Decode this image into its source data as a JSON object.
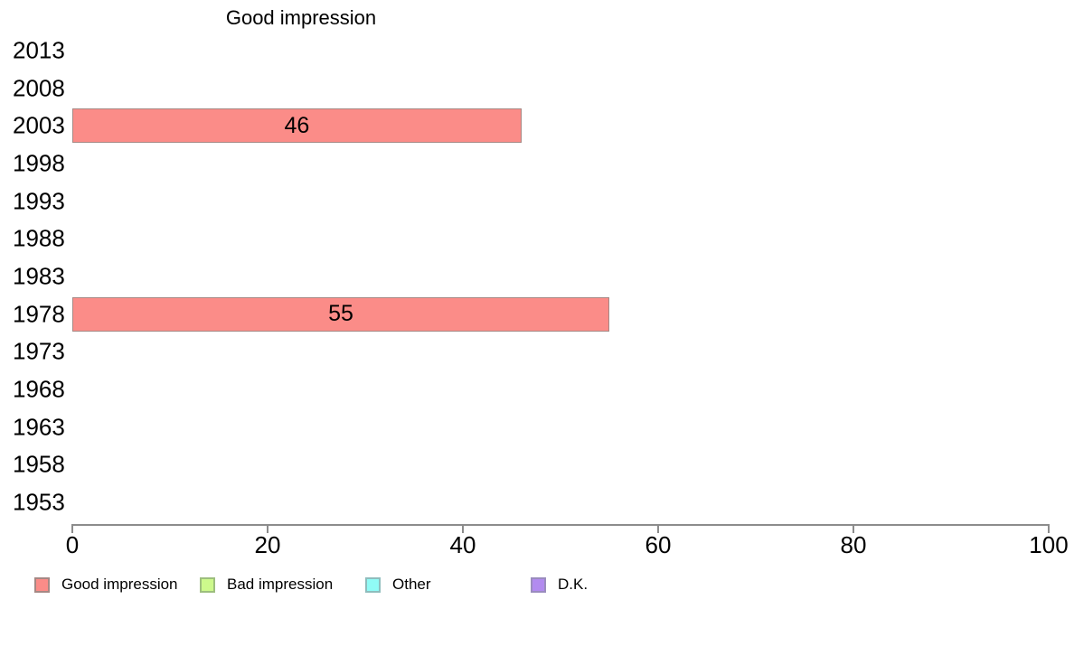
{
  "chart_data": {
    "type": "bar",
    "orientation": "horizontal",
    "title": "Good impression",
    "categories": [
      "2013",
      "2008",
      "2003",
      "1998",
      "1993",
      "1988",
      "1983",
      "1978",
      "1973",
      "1968",
      "1963",
      "1958",
      "1953"
    ],
    "series": [
      {
        "name": "Good impression",
        "color": "#FB8C88",
        "border_color": "#A58884",
        "values": [
          null,
          null,
          46,
          null,
          null,
          null,
          null,
          55,
          null,
          null,
          null,
          null,
          null
        ]
      }
    ],
    "xlim": [
      0,
      100
    ],
    "x_ticks": [
      0,
      20,
      40,
      60,
      80,
      100
    ],
    "grid": false,
    "axis_color": "#8C8C8C",
    "text_color": "#000000",
    "legend": {
      "position": "bottom",
      "items": [
        {
          "label": "Good impression",
          "color": "#FB8C88",
          "border_color": "#A58884"
        },
        {
          "label": "Bad impression",
          "color": "#CDF98C",
          "border_color": "#9DBE7E"
        },
        {
          "label": "Other",
          "color": "#90FBF6",
          "border_color": "#8FBDBD"
        },
        {
          "label": "D.K.",
          "color": "#B28BEF",
          "border_color": "#9A8CBE"
        }
      ]
    }
  }
}
